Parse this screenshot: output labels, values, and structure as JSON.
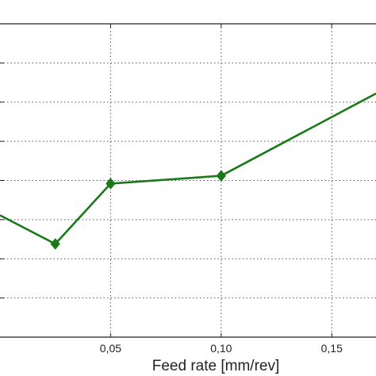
{
  "chart_data": {
    "type": "line",
    "xlabel": "Feed rate [mm/rev]",
    "ylabel": "",
    "title": "",
    "grid": true,
    "xlim": [
      0.0,
      0.17
    ],
    "ylim": [
      0,
      8
    ],
    "x_ticks": [
      0.05,
      0.1,
      0.15
    ],
    "x_tick_labels": [
      "0,05",
      "0,10",
      "0,15"
    ],
    "y_ticks": [
      1,
      2,
      3,
      4,
      5,
      6,
      7
    ],
    "series": [
      {
        "color": "#1a7a1a",
        "marker": "diamond",
        "x": [
          0.0,
          0.025,
          0.05,
          0.1,
          0.17
        ],
        "y": [
          3.11,
          2.38,
          3.92,
          4.12,
          6.22
        ]
      }
    ]
  }
}
